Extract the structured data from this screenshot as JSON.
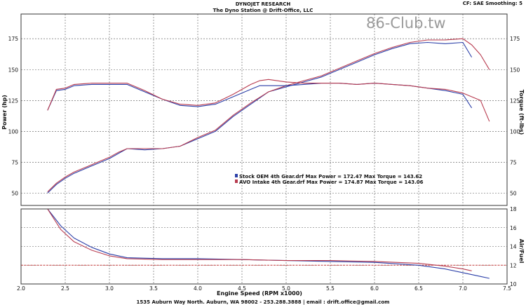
{
  "header": {
    "title_line1": "DYNOJET RESEARCH",
    "title_line2": "The Dyno Station @ Drift-Office, LLC",
    "settings": "CF: SAE  Smoothing: 5",
    "watermark": "86-Club.tw",
    "footer": "1535 Auburn Way North. Auburn, WA 98002 - 253.288.3888 | email : drift.office@gmail.com"
  },
  "legend": [
    {
      "text": "Stock OEM 4th Gear.drf Max Power = 172.47     Max Torque = 143.62",
      "color": "#2b3fa8"
    },
    {
      "text": "AVO Intake 4th Gear.drf Max Power = 174.87    Max Torque = 143.06",
      "color": "#b83b4f"
    }
  ],
  "chart_data": [
    {
      "type": "line",
      "xlabel": "",
      "ylabel": "Power (hp)",
      "ylabel_right": "Torque (ft-lbs)",
      "xlim": [
        2.0,
        7.5
      ],
      "ylim": [
        40,
        195
      ],
      "x_ticks": [
        "2.0",
        "2.5",
        "3.0",
        "3.5",
        "4.0",
        "4.5",
        "5.0",
        "5.5",
        "6.0",
        "6.5",
        "7.0",
        "7.5"
      ],
      "y_ticks": [
        50,
        75,
        100,
        125,
        150,
        175
      ],
      "grid": true,
      "series": [
        {
          "name": "Stock OEM 4th Gear.drf",
          "color": "#2b3fa8",
          "metric": "power",
          "points": [
            [
              2.3,
              50
            ],
            [
              2.4,
              57
            ],
            [
              2.5,
              62
            ],
            [
              2.6,
              66
            ],
            [
              2.8,
              72
            ],
            [
              3.0,
              78
            ],
            [
              3.1,
              82
            ],
            [
              3.2,
              86
            ],
            [
              3.4,
              85
            ],
            [
              3.6,
              86
            ],
            [
              3.8,
              88
            ],
            [
              4.0,
              94
            ],
            [
              4.2,
              100
            ],
            [
              4.4,
              112
            ],
            [
              4.6,
              122
            ],
            [
              4.8,
              132
            ],
            [
              5.0,
              136
            ],
            [
              5.2,
              140
            ],
            [
              5.4,
              144
            ],
            [
              5.6,
              150
            ],
            [
              5.8,
              156
            ],
            [
              6.0,
              162
            ],
            [
              6.2,
              167
            ],
            [
              6.4,
              171
            ],
            [
              6.6,
              172
            ],
            [
              6.8,
              171
            ],
            [
              7.0,
              172
            ],
            [
              7.1,
              160
            ]
          ]
        },
        {
          "name": "AVO Intake 4th Gear.drf",
          "color": "#b83b4f",
          "metric": "power",
          "points": [
            [
              2.3,
              51
            ],
            [
              2.4,
              58
            ],
            [
              2.5,
              63
            ],
            [
              2.6,
              67
            ],
            [
              2.8,
              73
            ],
            [
              3.0,
              79
            ],
            [
              3.1,
              83
            ],
            [
              3.2,
              86
            ],
            [
              3.4,
              86
            ],
            [
              3.6,
              86
            ],
            [
              3.8,
              88
            ],
            [
              4.0,
              95
            ],
            [
              4.2,
              101
            ],
            [
              4.4,
              113
            ],
            [
              4.6,
              123
            ],
            [
              4.8,
              132
            ],
            [
              5.0,
              137
            ],
            [
              5.2,
              141
            ],
            [
              5.4,
              145
            ],
            [
              5.6,
              151
            ],
            [
              5.8,
              157
            ],
            [
              6.0,
              163
            ],
            [
              6.2,
              168
            ],
            [
              6.4,
              172
            ],
            [
              6.6,
              174
            ],
            [
              6.8,
              174
            ],
            [
              7.0,
              175
            ],
            [
              7.1,
              170
            ],
            [
              7.2,
              162
            ],
            [
              7.3,
              150
            ]
          ]
        },
        {
          "name": "Stock OEM 4th Gear.drf",
          "color": "#2b3fa8",
          "metric": "torque",
          "points": [
            [
              2.3,
              117
            ],
            [
              2.4,
              133
            ],
            [
              2.5,
              134
            ],
            [
              2.6,
              137
            ],
            [
              2.8,
              138
            ],
            [
              3.0,
              138
            ],
            [
              3.2,
              138
            ],
            [
              3.4,
              132
            ],
            [
              3.6,
              126
            ],
            [
              3.8,
              121
            ],
            [
              4.0,
              120
            ],
            [
              4.2,
              122
            ],
            [
              4.4,
              128
            ],
            [
              4.6,
              134
            ],
            [
              4.7,
              137
            ],
            [
              4.8,
              137
            ],
            [
              5.0,
              137
            ],
            [
              5.2,
              138
            ],
            [
              5.4,
              139
            ],
            [
              5.6,
              139
            ],
            [
              5.8,
              138
            ],
            [
              6.0,
              139
            ],
            [
              6.2,
              138
            ],
            [
              6.4,
              137
            ],
            [
              6.6,
              135
            ],
            [
              6.8,
              133
            ],
            [
              7.0,
              130
            ],
            [
              7.1,
              119
            ]
          ]
        },
        {
          "name": "AVO Intake 4th Gear.drf",
          "color": "#b83b4f",
          "metric": "torque",
          "points": [
            [
              2.3,
              117
            ],
            [
              2.4,
              134
            ],
            [
              2.5,
              135
            ],
            [
              2.6,
              138
            ],
            [
              2.8,
              139
            ],
            [
              3.0,
              139
            ],
            [
              3.2,
              139
            ],
            [
              3.4,
              133
            ],
            [
              3.6,
              126
            ],
            [
              3.8,
              122
            ],
            [
              4.0,
              121
            ],
            [
              4.2,
              123
            ],
            [
              4.4,
              130
            ],
            [
              4.6,
              138
            ],
            [
              4.7,
              141
            ],
            [
              4.8,
              142
            ],
            [
              5.0,
              140
            ],
            [
              5.2,
              139
            ],
            [
              5.4,
              139
            ],
            [
              5.6,
              139
            ],
            [
              5.8,
              138
            ],
            [
              6.0,
              139
            ],
            [
              6.2,
              138
            ],
            [
              6.4,
              137
            ],
            [
              6.6,
              135
            ],
            [
              6.8,
              134
            ],
            [
              7.0,
              131
            ],
            [
              7.2,
              125
            ],
            [
              7.3,
              108
            ]
          ]
        }
      ]
    },
    {
      "type": "line",
      "xlabel": "Engine Speed (RPM x1000)",
      "ylabel": "",
      "ylabel_right": "Air/Fuel",
      "xlim": [
        2.0,
        7.5
      ],
      "ylim": [
        10,
        18
      ],
      "y_ticks": [
        10,
        12,
        14,
        16,
        18
      ],
      "reference_line": 12.0,
      "grid": true,
      "series": [
        {
          "name": "Stock OEM 4th Gear.drf",
          "color": "#2b3fa8",
          "metric": "afr",
          "points": [
            [
              2.3,
              18.0
            ],
            [
              2.45,
              16.2
            ],
            [
              2.6,
              14.9
            ],
            [
              2.8,
              13.9
            ],
            [
              3.0,
              13.2
            ],
            [
              3.2,
              12.8
            ],
            [
              3.6,
              12.7
            ],
            [
              4.0,
              12.7
            ],
            [
              4.5,
              12.6
            ],
            [
              5.0,
              12.5
            ],
            [
              5.5,
              12.4
            ],
            [
              6.0,
              12.3
            ],
            [
              6.5,
              12.0
            ],
            [
              6.8,
              11.6
            ],
            [
              7.0,
              11.2
            ],
            [
              7.2,
              10.8
            ],
            [
              7.3,
              10.6
            ]
          ]
        },
        {
          "name": "AVO Intake 4th Gear.drf",
          "color": "#b83b4f",
          "metric": "afr",
          "points": [
            [
              2.3,
              18.0
            ],
            [
              2.45,
              15.8
            ],
            [
              2.6,
              14.5
            ],
            [
              2.8,
              13.6
            ],
            [
              3.0,
              13.0
            ],
            [
              3.2,
              12.7
            ],
            [
              3.6,
              12.6
            ],
            [
              4.0,
              12.6
            ],
            [
              4.5,
              12.6
            ],
            [
              5.0,
              12.5
            ],
            [
              5.5,
              12.5
            ],
            [
              6.0,
              12.4
            ],
            [
              6.5,
              12.2
            ],
            [
              6.8,
              11.9
            ],
            [
              7.0,
              11.6
            ],
            [
              7.1,
              11.4
            ]
          ]
        }
      ]
    }
  ]
}
